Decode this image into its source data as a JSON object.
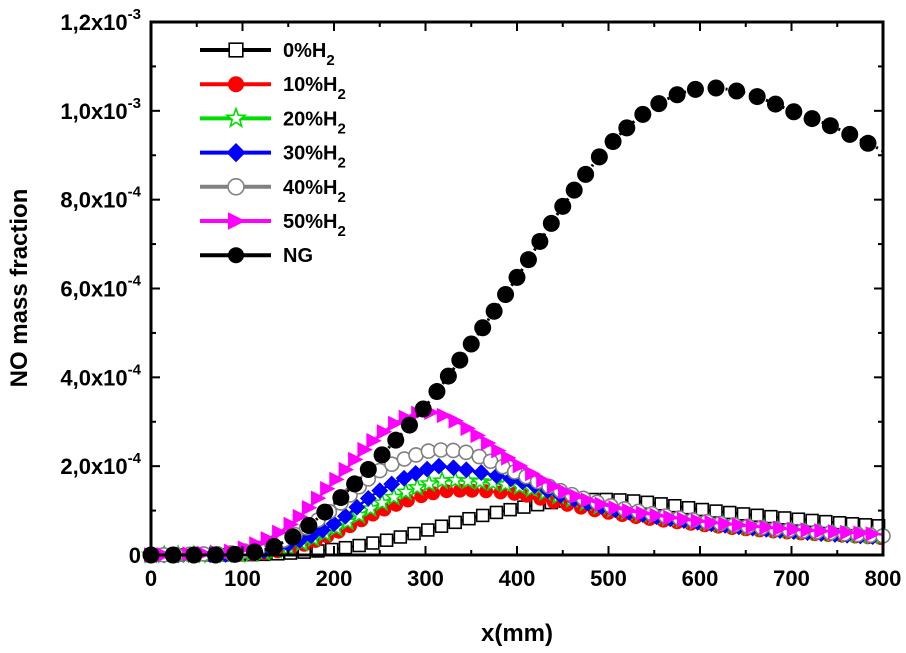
{
  "chart_data": {
    "type": "scatter",
    "xlabel": "x(mm)",
    "ylabel": "NO mass fraction",
    "xlim": [
      0,
      800
    ],
    "ylim": [
      0,
      0.0012
    ],
    "x_ticks": [
      0,
      100,
      200,
      300,
      400,
      500,
      600,
      700,
      800
    ],
    "x_tick_labels": [
      "0",
      "100",
      "200",
      "300",
      "400",
      "500",
      "600",
      "700",
      "800"
    ],
    "y_ticks": [
      0,
      0.0002,
      0.0004,
      0.0006,
      0.0008,
      0.001,
      0.0012
    ],
    "y_tick_labels": [
      {
        "mant": "0",
        "exp": ""
      },
      {
        "mant": "2,0x10",
        "exp": "-4"
      },
      {
        "mant": "4,0x10",
        "exp": "-4"
      },
      {
        "mant": "6,0x10",
        "exp": "-4"
      },
      {
        "mant": "8,0x10",
        "exp": "-4"
      },
      {
        "mant": "1,0x10",
        "exp": "-3"
      },
      {
        "mant": "1,2x10",
        "exp": "-3"
      }
    ],
    "grid": false,
    "legend_position": "top-left",
    "series": [
      {
        "name": "0%H",
        "sub": "2",
        "color": "#000000",
        "marker": "square-open",
        "spacing": 12,
        "x": [
          0,
          100,
          150,
          200,
          250,
          300,
          350,
          400,
          450,
          500,
          550,
          600,
          650,
          700,
          750,
          800
        ],
        "y": [
          0,
          5e-07,
          4e-06,
          1.3e-05,
          3e-05,
          5.5e-05,
          8.3e-05,
          0.000105,
          0.000121,
          0.000125,
          0.000117,
          0.000103,
          9.2e-05,
          8.2e-05,
          7.3e-05,
          6.5e-05
        ]
      },
      {
        "name": "10%H",
        "sub": "2",
        "color": "#ff0000",
        "marker": "circle",
        "spacing": 12,
        "x": [
          0,
          100,
          150,
          200,
          250,
          300,
          340,
          400,
          450,
          500,
          550,
          600,
          650,
          700,
          750,
          800
        ],
        "y": [
          0,
          1e-06,
          1.3e-05,
          4.8e-05,
          9.8e-05,
          0.000135,
          0.000145,
          0.000137,
          0.000115,
          9.5e-05,
          8e-05,
          6.8e-05,
          5.8e-05,
          5e-05,
          4.4e-05,
          3.8e-05
        ]
      },
      {
        "name": "20%H",
        "sub": "2",
        "color": "#00dd00",
        "marker": "star-open",
        "spacing": 12,
        "x": [
          0,
          100,
          150,
          200,
          250,
          300,
          335,
          400,
          450,
          500,
          550,
          600,
          650,
          700,
          750,
          800
        ],
        "y": [
          0,
          2e-06,
          1.7e-05,
          5.8e-05,
          0.000115,
          0.000158,
          0.000168,
          0.000155,
          0.00013,
          0.000105,
          8.8e-05,
          7.4e-05,
          6.3e-05,
          5.4e-05,
          4.7e-05,
          4.1e-05
        ]
      },
      {
        "name": "30%H",
        "sub": "2",
        "color": "#0000ff",
        "marker": "diamond",
        "spacing": 12,
        "x": [
          0,
          100,
          150,
          200,
          250,
          300,
          325,
          400,
          450,
          500,
          550,
          600,
          650,
          700,
          750,
          800
        ],
        "y": [
          0,
          3e-06,
          2.4e-05,
          7e-05,
          0.000145,
          0.000192,
          0.000198,
          0.000168,
          0.000133,
          0.000105,
          8.7e-05,
          7.3e-05,
          6.2e-05,
          5.3e-05,
          4.6e-05,
          4e-05
        ]
      },
      {
        "name": "40%H",
        "sub": "2",
        "color": "#808080",
        "marker": "circle-open",
        "spacing": 12,
        "x": [
          0,
          50,
          100,
          150,
          200,
          250,
          300,
          320,
          350,
          400,
          450,
          500,
          550,
          600,
          650,
          700,
          750,
          800
        ],
        "y": [
          0,
          2e-06,
          8e-06,
          3.8e-05,
          0.000105,
          0.00019,
          0.000232,
          0.000236,
          0.000228,
          0.000185,
          0.000143,
          0.000112,
          9.2e-05,
          7.7e-05,
          6.5e-05,
          5.6e-05,
          4.9e-05,
          4.3e-05
        ]
      },
      {
        "name": "50%H",
        "sub": "2",
        "color": "#ff00ff",
        "marker": "triangle-right",
        "spacing": 12,
        "x": [
          0,
          50,
          100,
          150,
          200,
          250,
          290,
          330,
          400,
          450,
          500,
          550,
          600,
          650,
          700,
          750,
          800
        ],
        "y": [
          0,
          3e-06,
          1.4e-05,
          6.5e-05,
          0.000165,
          0.00027,
          0.000318,
          0.000305,
          0.000205,
          0.000145,
          0.00011,
          9e-05,
          7.6e-05,
          6.6e-05,
          5.8e-05,
          5.2e-05,
          4.6e-05
        ]
      },
      {
        "name": "NG",
        "sub": "",
        "color": "#000000",
        "marker": "circle",
        "spacing": 19,
        "dotted": true,
        "x": [
          0,
          100,
          150,
          200,
          250,
          300,
          350,
          400,
          450,
          500,
          550,
          600,
          650,
          700,
          750,
          800
        ],
        "y": [
          0,
          3e-06,
          3.5e-05,
          0.000115,
          0.00022,
          0.000335,
          0.000475,
          0.000625,
          0.000785,
          0.00092,
          0.00101,
          0.00105,
          0.00104,
          0.001,
          0.00096,
          0.00091
        ]
      }
    ]
  }
}
